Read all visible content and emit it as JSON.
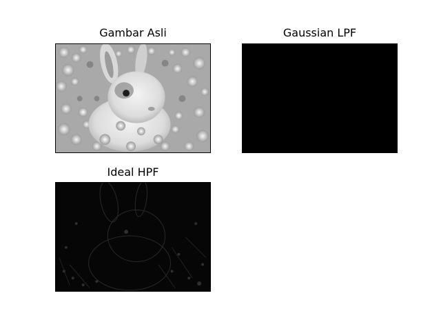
{
  "panels": [
    {
      "title": "Gambar Asli",
      "image": "grayscale-rabbit-in-flowers"
    },
    {
      "title": "Gaussian LPF",
      "image": "black-image"
    },
    {
      "title": "Ideal HPF",
      "image": "dark-edge-filtered-rabbit"
    }
  ]
}
